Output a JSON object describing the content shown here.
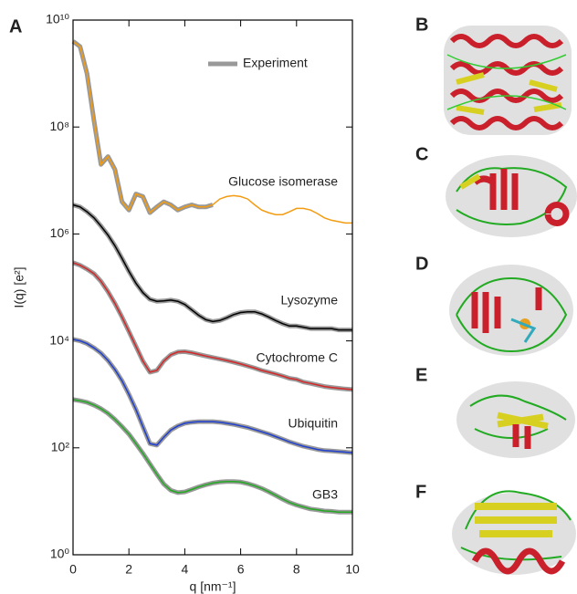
{
  "chart_data": {
    "type": "line",
    "panel_label": "A",
    "x_label": "q [nm⁻¹]",
    "y_label": "I(q) [e²]",
    "xlim": [
      0,
      10
    ],
    "xticks": [
      0,
      2,
      4,
      6,
      8,
      10
    ],
    "ylim": [
      1,
      10000000000.0
    ],
    "ylog": true,
    "yticks": [
      {
        "value": 1,
        "label": "10⁰"
      },
      {
        "value": 100,
        "label": "10²"
      },
      {
        "value": 10000,
        "label": "10⁴"
      },
      {
        "value": 1000000,
        "label": "10⁶"
      },
      {
        "value": 100000000,
        "label": "10⁸"
      },
      {
        "value": 10000000000,
        "label": "10¹⁰"
      }
    ],
    "legend": {
      "name": "Experiment",
      "color": "#999999",
      "position": "upper right"
    },
    "x": [
      0,
      0.25,
      0.5,
      0.75,
      1,
      1.25,
      1.5,
      1.75,
      2,
      2.25,
      2.5,
      2.75,
      3,
      3.25,
      3.5,
      3.75,
      4,
      4.25,
      4.5,
      4.75,
      5,
      5.25,
      5.5,
      5.75,
      6,
      6.25,
      6.5,
      6.75,
      7,
      7.25,
      7.5,
      7.75,
      8,
      8.25,
      8.5,
      8.75,
      9,
      9.25,
      9.5,
      9.75,
      10
    ],
    "series": [
      {
        "name": "Glucose isomerase",
        "color": "#f39c12",
        "values": [
          4000000000.0,
          3200000000.0,
          1000000000.0,
          130000000.0,
          20000000.0,
          28000000.0,
          16000000.0,
          4000000.0,
          2800000.0,
          5600000.0,
          5000000.0,
          2500000.0,
          3200000.0,
          4000000.0,
          3500000.0,
          2800000.0,
          3200000.0,
          3500000.0,
          3200000.0,
          3200000.0,
          3500000.0,
          4500000.0,
          5000000.0,
          5200000.0,
          5000000.0,
          4500000.0,
          3500000.0,
          2800000.0,
          2500000.0,
          2300000.0,
          2300000.0,
          2600000.0,
          3000000.0,
          3000000.0,
          2800000.0,
          2400000.0,
          2000000.0,
          1800000.0,
          1700000.0,
          1600000.0,
          1600000.0
        ],
        "experiment_values": [
          4000000000.0,
          3200000000.0,
          1000000000.0,
          130000000.0,
          20000000.0,
          28000000.0,
          16000000.0,
          4000000.0,
          2800000.0,
          5600000.0,
          5000000.0,
          2500000.0,
          3200000.0,
          4000000.0,
          3500000.0,
          2800000.0,
          3200000.0,
          3500000.0,
          3200000.0,
          3200000.0,
          3500000.0,
          null,
          null,
          null,
          null,
          null,
          null,
          null,
          null,
          null,
          null,
          null,
          null,
          null,
          null,
          null,
          null,
          null,
          null,
          null,
          null
        ]
      },
      {
        "name": "Lysozyme",
        "color": "#000000",
        "values": [
          3500000.0,
          3200000.0,
          2600000.0,
          2000000.0,
          1400000.0,
          950000.0,
          600000.0,
          350000.0,
          200000.0,
          120000.0,
          80000.0,
          60000.0,
          55000.0,
          56000.0,
          58000.0,
          55000.0,
          48000.0,
          38000.0,
          30000.0,
          25000.0,
          23000.0,
          24000.0,
          27000.0,
          31000.0,
          34000.0,
          35000.0,
          35000.0,
          32000.0,
          28000.0,
          24000.0,
          21000.0,
          19000.0,
          19000.0,
          18000.0,
          17000.0,
          17000.0,
          17000.0,
          17000.0,
          16000.0,
          16000.0,
          16000.0
        ]
      },
      {
        "name": "Cytochrome C",
        "color": "#d62728",
        "values": [
          290000.0,
          260000.0,
          220000.0,
          180000.0,
          130000.0,
          83000.0,
          50000.0,
          28000.0,
          15000.0,
          7900,
          4200,
          2600,
          2800,
          4200,
          5500,
          6200,
          6300,
          6000,
          5600,
          5200,
          4900,
          4600,
          4300,
          4000,
          3700,
          3400,
          3100,
          2800,
          2600,
          2400,
          2200,
          2000,
          1900,
          1700,
          1600,
          1500,
          1400,
          1350,
          1300,
          1260,
          1230
        ]
      },
      {
        "name": "Ubiquitin",
        "color": "#1f3fcf",
        "values": [
          10700,
          10000,
          8900,
          7400,
          5900,
          4300,
          2900,
          1800,
          1000,
          520,
          250,
          120,
          112,
          158,
          214,
          257,
          288,
          302,
          309,
          309,
          309,
          302,
          288,
          275,
          257,
          240,
          219,
          200,
          182,
          162,
          145,
          129,
          117,
          107,
          100,
          93,
          89,
          87,
          85,
          83,
          81
        ]
      },
      {
        "name": "GB3",
        "color": "#22aa22",
        "values": [
          800,
          760,
          710,
          630,
          540,
          440,
          340,
          250,
          180,
          120,
          79,
          50,
          32,
          21,
          16,
          14.5,
          15,
          16.6,
          18.6,
          20.4,
          21.9,
          22.9,
          23.4,
          23.4,
          22.9,
          21.4,
          19.5,
          17.4,
          15.1,
          12.9,
          11,
          9.5,
          8.5,
          7.8,
          7.2,
          6.9,
          6.6,
          6.5,
          6.3,
          6.3,
          6.3
        ]
      }
    ]
  },
  "structures": [
    {
      "label": "B"
    },
    {
      "label": "C"
    },
    {
      "label": "D"
    },
    {
      "label": "E"
    },
    {
      "label": "F"
    }
  ]
}
